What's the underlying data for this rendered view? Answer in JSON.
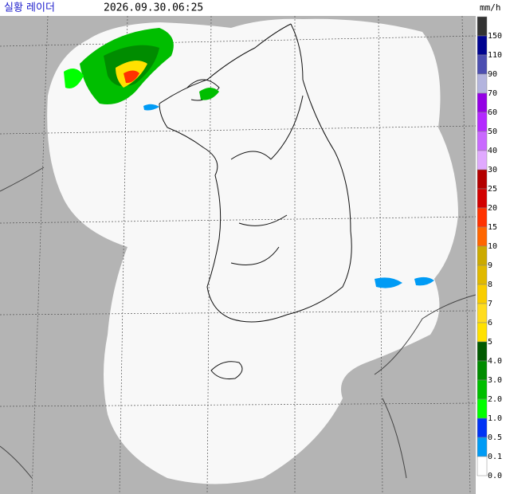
{
  "header": {
    "title": "실황 레이더",
    "time": "2026.09.30.06:25",
    "unit": "mm/h"
  },
  "legend": {
    "items": [
      {
        "label": "150",
        "color": "#333333"
      },
      {
        "label": "110",
        "color": "#000390"
      },
      {
        "label": "90",
        "color": "#4c4eb1"
      },
      {
        "label": "70",
        "color": "#b3b4de"
      },
      {
        "label": "60",
        "color": "#9300e4"
      },
      {
        "label": "50",
        "color": "#b329ff"
      },
      {
        "label": "40",
        "color": "#c969ff"
      },
      {
        "label": "30",
        "color": "#e0a9ff"
      },
      {
        "label": "25",
        "color": "#b40000"
      },
      {
        "label": "20",
        "color": "#d20000"
      },
      {
        "label": "15",
        "color": "#ff3200"
      },
      {
        "label": "10",
        "color": "#ff6600"
      },
      {
        "label": "9",
        "color": "#ccaa00"
      },
      {
        "label": "8",
        "color": "#e0b900"
      },
      {
        "label": "7",
        "color": "#f9cd00"
      },
      {
        "label": "6",
        "color": "#ffdc1f"
      },
      {
        "label": "5",
        "color": "#ffe100"
      },
      {
        "label": "4.0",
        "color": "#005a00"
      },
      {
        "label": "3.0",
        "color": "#008c00"
      },
      {
        "label": "2.0",
        "color": "#00be00"
      },
      {
        "label": "1.0",
        "color": "#00ff00"
      },
      {
        "label": "0.5",
        "color": "#0033f5"
      },
      {
        "label": "0.1",
        "color": "#009bf5"
      },
      {
        "label": "0.0",
        "color": "#ffffff"
      }
    ]
  }
}
